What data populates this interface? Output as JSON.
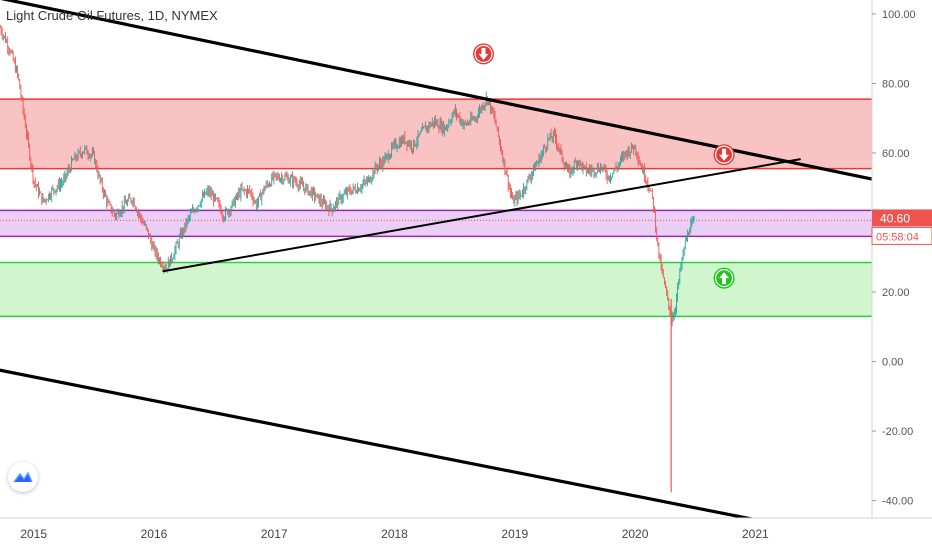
{
  "chart": {
    "title": "Light Crude Oil Futures, 1D, NYMEX",
    "last_price": "40.60",
    "countdown": "05:58:04",
    "colors": {
      "bull": "#26a69a",
      "bear": "#ef5350",
      "price_label": "#ef5350",
      "resistance_zone": "#f8b9b9",
      "resistance_line": "#e53935",
      "mid_zone": "#e8c6f4",
      "mid_line": "#9c27b0",
      "support_zone": "#c9f5c4",
      "support_line": "#2ecc40",
      "trendline": "#000000",
      "sell_marker": "#e53935",
      "buy_marker": "#1ec61e"
    }
  },
  "chart_data": {
    "type": "candlestick",
    "x_ticks": [
      "2015",
      "2016",
      "2017",
      "2018",
      "2019",
      "2020",
      "2021"
    ],
    "y_ticks": [
      "100.00",
      "80.00",
      "60.00",
      "40.00",
      "20.00",
      "0.00",
      "-20.00",
      "-40.00"
    ],
    "ylim": [
      -45,
      104
    ],
    "xlim": [
      2014.72,
      2021.97
    ],
    "price_path": [
      [
        2014.72,
        96
      ],
      [
        2014.8,
        90
      ],
      [
        2014.87,
        82
      ],
      [
        2014.93,
        68
      ],
      [
        2015.0,
        52
      ],
      [
        2015.08,
        46
      ],
      [
        2015.15,
        49
      ],
      [
        2015.25,
        52
      ],
      [
        2015.33,
        58
      ],
      [
        2015.42,
        61
      ],
      [
        2015.5,
        59
      ],
      [
        2015.55,
        52
      ],
      [
        2015.62,
        45
      ],
      [
        2015.68,
        42
      ],
      [
        2015.75,
        45
      ],
      [
        2015.82,
        47
      ],
      [
        2015.88,
        42
      ],
      [
        2015.95,
        37
      ],
      [
        2016.0,
        32
      ],
      [
        2016.05,
        29
      ],
      [
        2016.1,
        27
      ],
      [
        2016.15,
        30
      ],
      [
        2016.22,
        36
      ],
      [
        2016.3,
        42
      ],
      [
        2016.38,
        46
      ],
      [
        2016.45,
        49
      ],
      [
        2016.52,
        46
      ],
      [
        2016.58,
        42
      ],
      [
        2016.65,
        45
      ],
      [
        2016.72,
        49
      ],
      [
        2016.8,
        49
      ],
      [
        2016.85,
        45
      ],
      [
        2016.92,
        50
      ],
      [
        2017.0,
        53
      ],
      [
        2017.08,
        53
      ],
      [
        2017.17,
        52
      ],
      [
        2017.25,
        50
      ],
      [
        2017.33,
        48
      ],
      [
        2017.42,
        45
      ],
      [
        2017.48,
        44
      ],
      [
        2017.55,
        47
      ],
      [
        2017.62,
        49
      ],
      [
        2017.7,
        50
      ],
      [
        2017.78,
        52
      ],
      [
        2017.85,
        56
      ],
      [
        2017.92,
        58
      ],
      [
        2018.0,
        62
      ],
      [
        2018.08,
        64
      ],
      [
        2018.15,
        62
      ],
      [
        2018.25,
        67
      ],
      [
        2018.33,
        69
      ],
      [
        2018.42,
        67
      ],
      [
        2018.5,
        72
      ],
      [
        2018.58,
        68
      ],
      [
        2018.67,
        70
      ],
      [
        2018.77,
        76
      ],
      [
        2018.83,
        70
      ],
      [
        2018.88,
        62
      ],
      [
        2018.93,
        54
      ],
      [
        2018.98,
        46
      ],
      [
        2019.05,
        48
      ],
      [
        2019.12,
        53
      ],
      [
        2019.2,
        58
      ],
      [
        2019.28,
        64
      ],
      [
        2019.33,
        65
      ],
      [
        2019.4,
        58
      ],
      [
        2019.45,
        54
      ],
      [
        2019.52,
        58
      ],
      [
        2019.58,
        55
      ],
      [
        2019.65,
        55
      ],
      [
        2019.72,
        56
      ],
      [
        2019.78,
        53
      ],
      [
        2019.85,
        56
      ],
      [
        2019.92,
        60
      ],
      [
        2020.0,
        62
      ],
      [
        2020.04,
        57
      ],
      [
        2020.1,
        52
      ],
      [
        2020.15,
        46
      ],
      [
        2020.2,
        30
      ],
      [
        2020.25,
        21
      ],
      [
        2020.28,
        16
      ],
      [
        2020.31,
        12
      ],
      [
        2020.34,
        17
      ],
      [
        2020.37,
        25
      ],
      [
        2020.41,
        33
      ],
      [
        2020.45,
        38
      ],
      [
        2020.5,
        40.6
      ]
    ],
    "spike": {
      "x": 2020.3,
      "y": -37.6
    },
    "zones": [
      {
        "name": "resistance",
        "y1": 55.5,
        "y2": 75.5
      },
      {
        "name": "mid",
        "y1": 36,
        "y2": 43.5
      },
      {
        "name": "support",
        "y1": 13,
        "y2": 28.5
      }
    ],
    "price_line": 40.6,
    "trendlines": [
      {
        "name": "upper-downtrend",
        "p1": [
          2014.72,
          104.5
        ],
        "p2": [
          2021.97,
          52.5
        ]
      },
      {
        "name": "rising-support",
        "p1": [
          2016.08,
          26
        ],
        "p2": [
          2021.37,
          58.2
        ]
      },
      {
        "name": "lower-channel",
        "p1": [
          2014.72,
          -2.5
        ],
        "p2": [
          2021.0,
          -45.5
        ]
      }
    ],
    "markers": [
      {
        "name": "sell-marker-top",
        "type": "sell",
        "x": 2018.74,
        "y": 88.5
      },
      {
        "name": "sell-marker-right",
        "type": "sell",
        "x": 2020.74,
        "y": 59.5
      },
      {
        "name": "buy-marker",
        "type": "buy",
        "x": 2020.74,
        "y": 24
      }
    ]
  }
}
